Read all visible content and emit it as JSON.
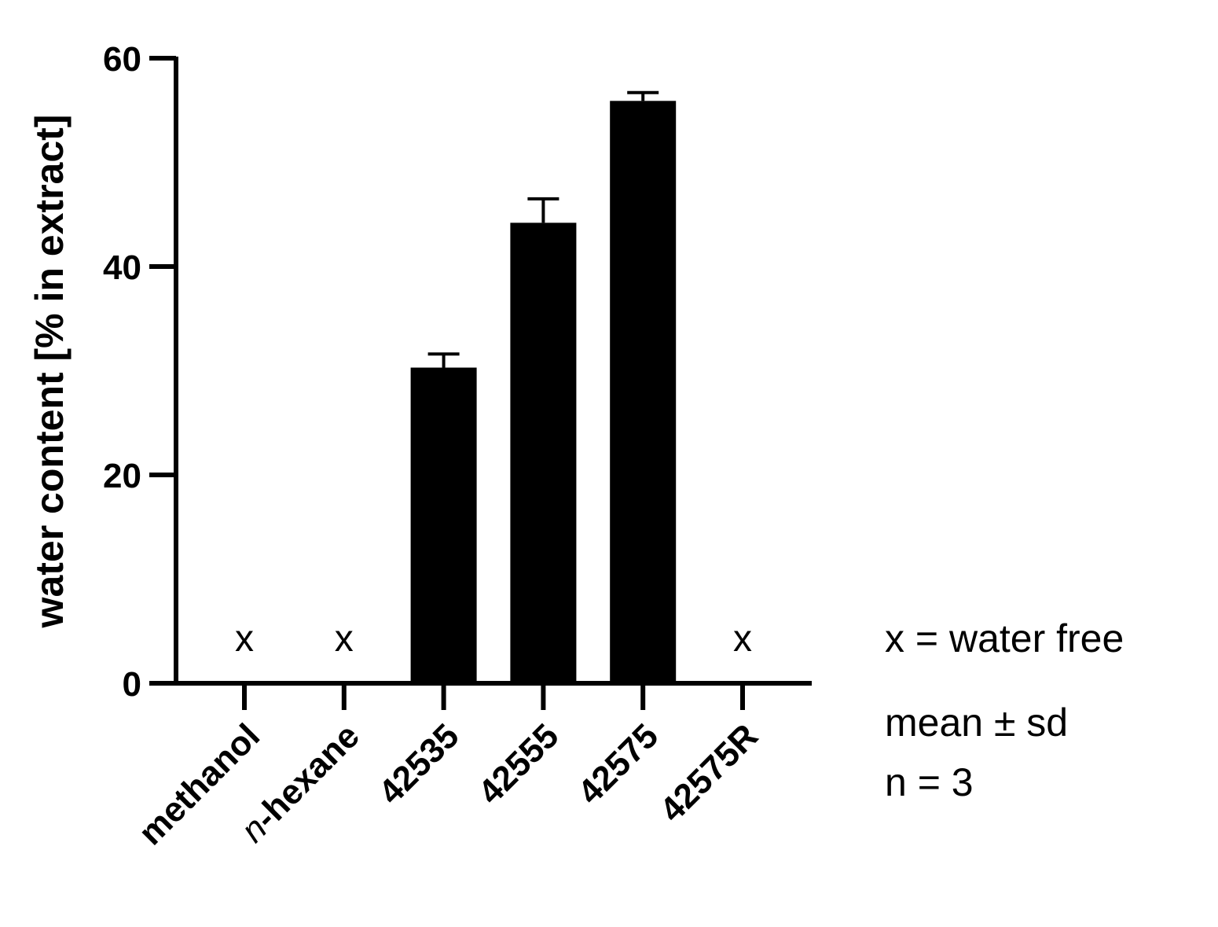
{
  "chart_data": {
    "type": "bar",
    "categories": [
      "methanol",
      "n-hexane",
      "42535",
      "42555",
      "42575",
      "42575R"
    ],
    "category_prefix_italic": [
      "",
      "n",
      "",
      "",
      "",
      ""
    ],
    "category_suffix": [
      "methanol",
      "-hexane",
      "42535",
      "42555",
      "42575",
      "42575R"
    ],
    "values": [
      0,
      0,
      30.3,
      44.2,
      55.9,
      0
    ],
    "errors": [
      0,
      0,
      1.3,
      2.3,
      0.8,
      0
    ],
    "markers": [
      "x",
      "x",
      "",
      "",
      "",
      "x"
    ],
    "ylabel": "water content [% in extract]",
    "xlabel": "",
    "title": "",
    "ylim": [
      0,
      60
    ],
    "yticks": [
      0,
      20,
      40,
      60
    ],
    "grid": false,
    "bar_color": "#000000"
  },
  "notes": {
    "marker_legend": "x = water free",
    "stat": "mean ± sd",
    "n": "n = 3"
  }
}
